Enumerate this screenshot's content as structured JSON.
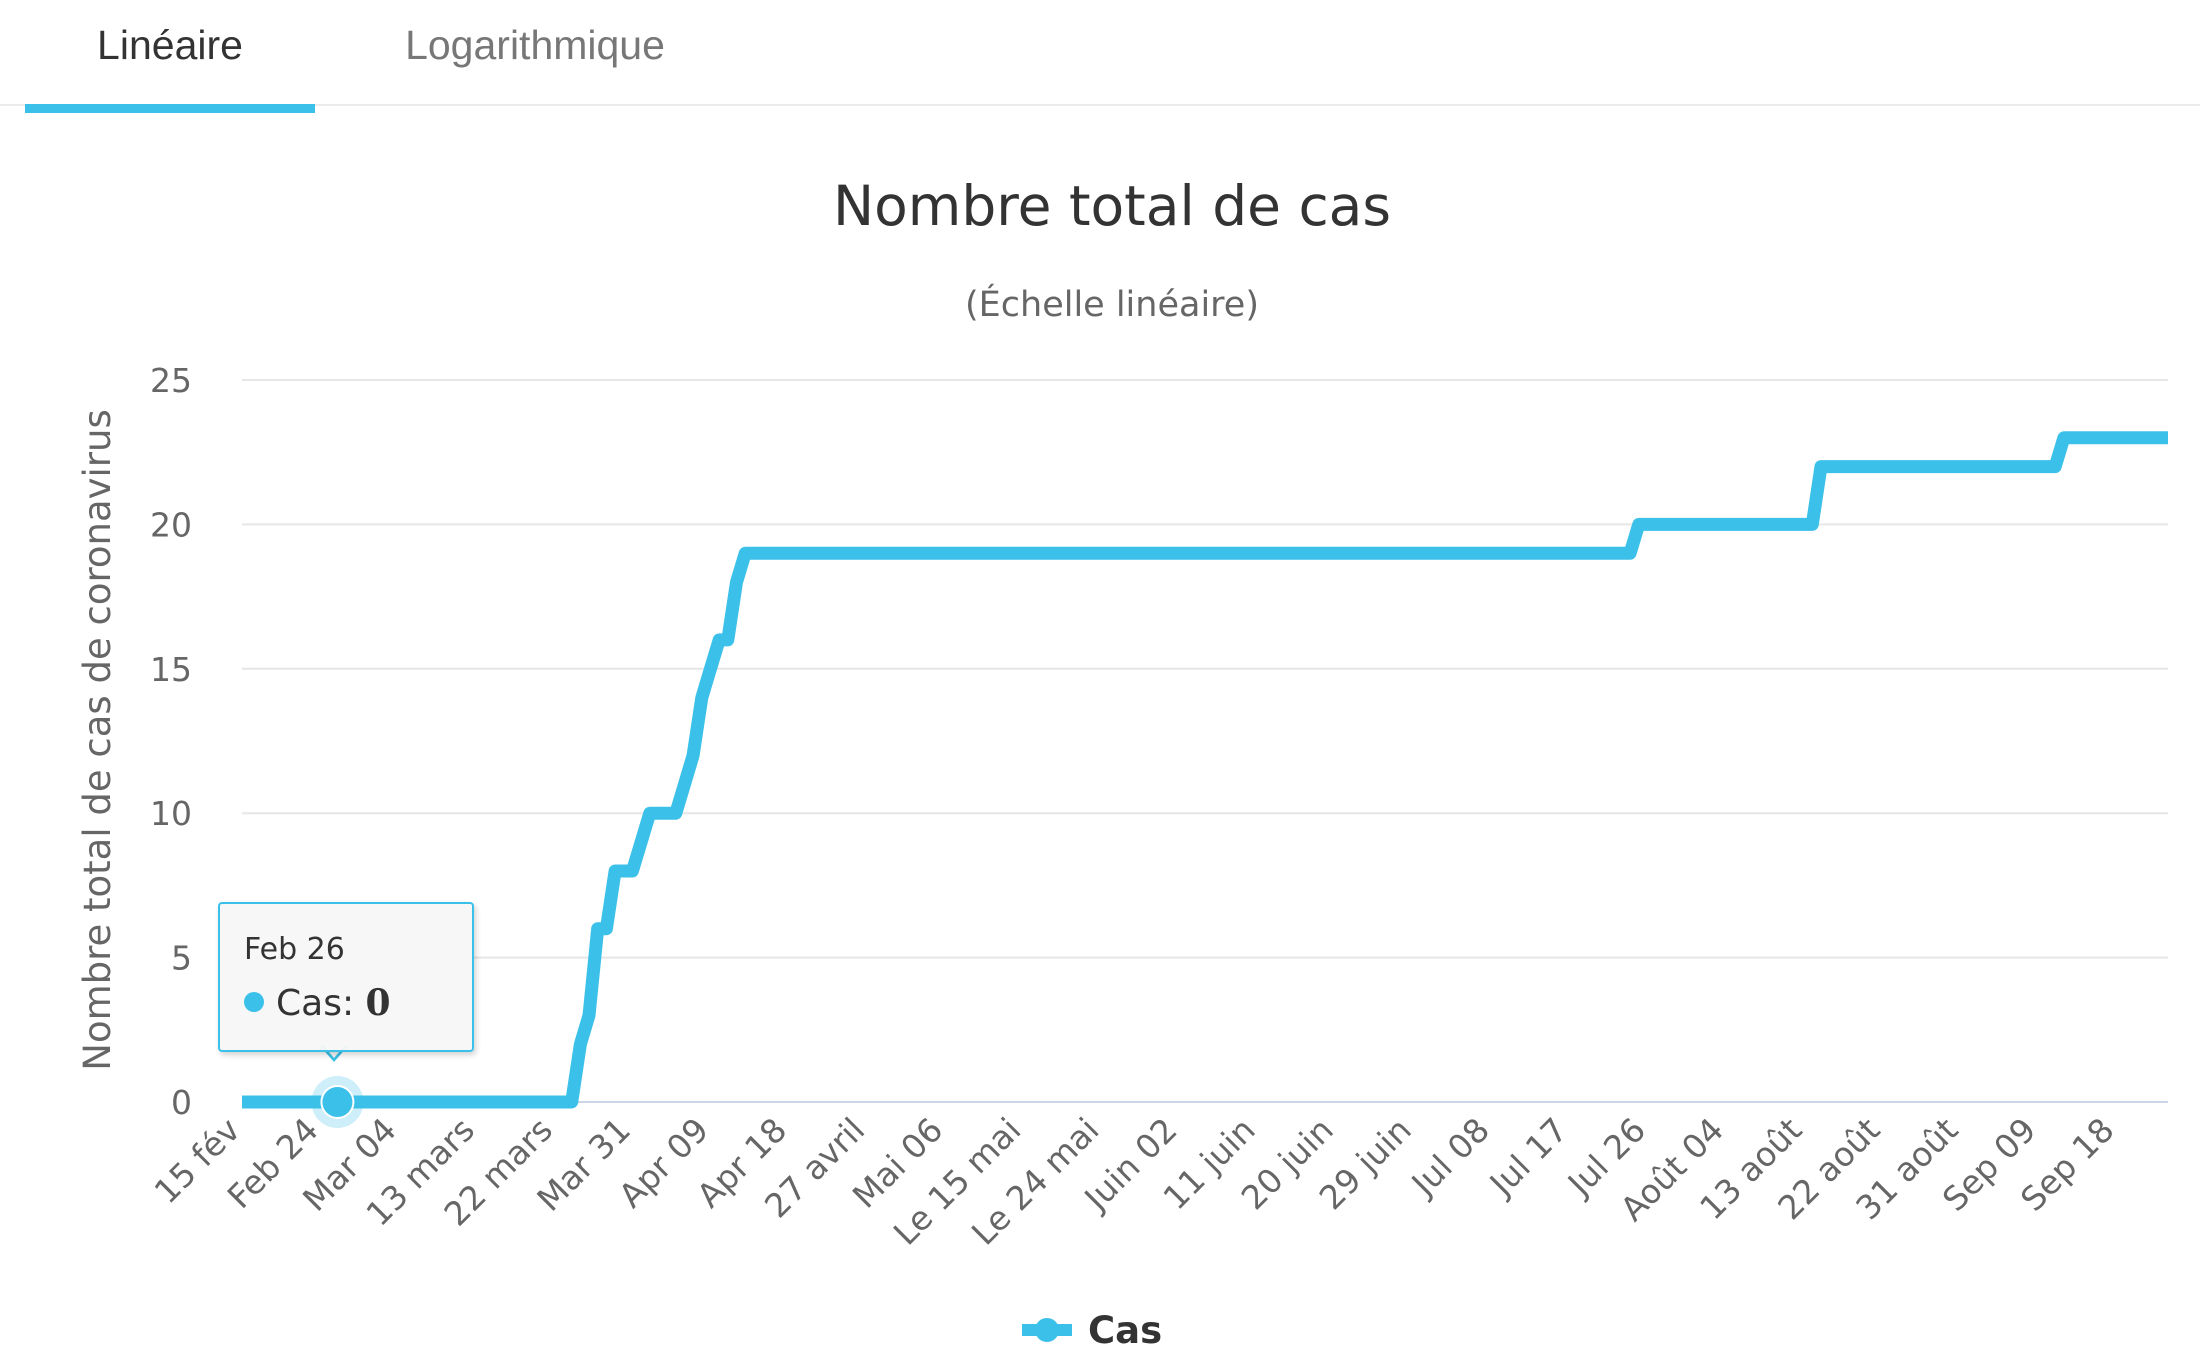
{
  "tabs": [
    {
      "label": "Linéaire",
      "active": true
    },
    {
      "label": "Logarithmique",
      "active": false
    }
  ],
  "colors": {
    "accent": "#3bc1e9",
    "grid": "#e6e6e6",
    "text": "#333333",
    "muted": "#666666"
  },
  "tooltip": {
    "date": "Feb 26",
    "series": "Cas",
    "value": "0"
  },
  "chart_data": {
    "type": "line",
    "title": "Nombre total de cas",
    "subtitle": "(Échelle linéaire)",
    "xlabel": "",
    "ylabel": "Nombre total de cas de coronavirus",
    "ylim": [
      0,
      25
    ],
    "yticks": [
      0,
      5,
      10,
      15,
      20,
      25
    ],
    "grid": true,
    "legend": "bottom-center",
    "xlim": [
      "2020-02-15",
      "2020-09-24"
    ],
    "x_tick_labels": [
      {
        "date": "2020-02-15",
        "label": "15 fév"
      },
      {
        "date": "2020-02-24",
        "label": "Feb 24"
      },
      {
        "date": "2020-03-04",
        "label": "Mar 04"
      },
      {
        "date": "2020-03-13",
        "label": "13 mars"
      },
      {
        "date": "2020-03-22",
        "label": "22 mars"
      },
      {
        "date": "2020-03-31",
        "label": "Mar 31"
      },
      {
        "date": "2020-04-09",
        "label": "Apr 09"
      },
      {
        "date": "2020-04-18",
        "label": "Apr 18"
      },
      {
        "date": "2020-04-27",
        "label": "27 avril"
      },
      {
        "date": "2020-05-06",
        "label": "Mai 06"
      },
      {
        "date": "2020-05-15",
        "label": "Le 15 mai"
      },
      {
        "date": "2020-05-24",
        "label": "Le 24 mai"
      },
      {
        "date": "2020-06-02",
        "label": "Juin 02"
      },
      {
        "date": "2020-06-11",
        "label": "11 juin"
      },
      {
        "date": "2020-06-20",
        "label": "20 juin"
      },
      {
        "date": "2020-06-29",
        "label": "29 juin"
      },
      {
        "date": "2020-07-08",
        "label": "Jul 08"
      },
      {
        "date": "2020-07-17",
        "label": "Jul 17"
      },
      {
        "date": "2020-07-26",
        "label": "Jul 26"
      },
      {
        "date": "2020-08-04",
        "label": "Août 04"
      },
      {
        "date": "2020-08-13",
        "label": "13 août"
      },
      {
        "date": "2020-08-22",
        "label": "22 août"
      },
      {
        "date": "2020-08-31",
        "label": "31 août"
      },
      {
        "date": "2020-09-09",
        "label": "Sep 09"
      },
      {
        "date": "2020-09-18",
        "label": "Sep 18"
      }
    ],
    "series": [
      {
        "name": "Cas",
        "color": "#3bc1e9",
        "points": [
          [
            "2020-02-15",
            0
          ],
          [
            "2020-03-24",
            0
          ],
          [
            "2020-03-25",
            2
          ],
          [
            "2020-03-26",
            3
          ],
          [
            "2020-03-27",
            6
          ],
          [
            "2020-03-28",
            6
          ],
          [
            "2020-03-29",
            8
          ],
          [
            "2020-03-30",
            8
          ],
          [
            "2020-03-31",
            8
          ],
          [
            "2020-04-01",
            9
          ],
          [
            "2020-04-02",
            10
          ],
          [
            "2020-04-05",
            10
          ],
          [
            "2020-04-06",
            11
          ],
          [
            "2020-04-07",
            12
          ],
          [
            "2020-04-08",
            14
          ],
          [
            "2020-04-09",
            15
          ],
          [
            "2020-04-10",
            16
          ],
          [
            "2020-04-11",
            16
          ],
          [
            "2020-04-12",
            18
          ],
          [
            "2020-04-13",
            19
          ],
          [
            "2020-07-24",
            19
          ],
          [
            "2020-07-25",
            20
          ],
          [
            "2020-08-14",
            20
          ],
          [
            "2020-08-15",
            22
          ],
          [
            "2020-09-11",
            22
          ],
          [
            "2020-09-12",
            23
          ],
          [
            "2020-09-24",
            23
          ]
        ]
      }
    ],
    "highlight_point": {
      "date": "2020-02-26",
      "value": 0
    }
  }
}
